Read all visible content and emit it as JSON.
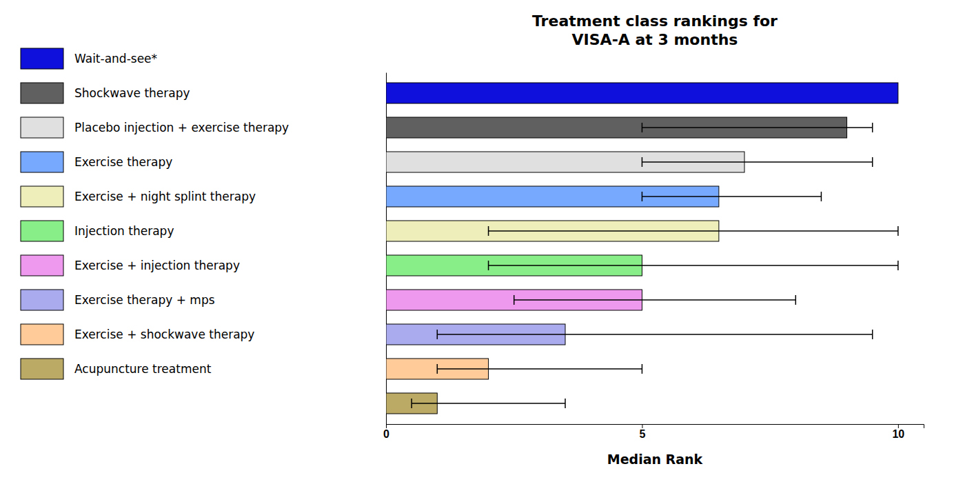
{
  "chart_data": {
    "type": "bar",
    "orientation": "horizontal",
    "title": "Treatment class rankings for\nVISA-A at 3 months",
    "xlabel": "Median Rank",
    "categories": [
      "Wait-and-see*",
      "Shockwave therapy",
      "Placebo injection + exercise therapy",
      "Exercise therapy",
      "Exercise + night splint therapy",
      "Injection therapy",
      "Exercise + injection therapy",
      "Exercise therapy + mps",
      "Exercise + shockwave therapy",
      "Acupuncture treatment"
    ],
    "values": [
      10.0,
      9.0,
      7.0,
      6.5,
      6.5,
      5.0,
      5.0,
      3.5,
      2.0,
      1.0
    ],
    "xerr_low": [
      0.0,
      4.0,
      2.0,
      1.5,
      4.5,
      3.0,
      2.5,
      2.5,
      1.0,
      0.5
    ],
    "xerr_high": [
      0.0,
      0.5,
      2.5,
      2.0,
      3.5,
      5.0,
      3.0,
      6.0,
      3.0,
      2.5
    ],
    "colors": [
      "#1010DD",
      "#606060",
      "#E0E0E0",
      "#77AAFF",
      "#EEEEBB",
      "#88EE88",
      "#EE99EE",
      "#AAAAEE",
      "#FFCC99",
      "#BBAA66"
    ],
    "xlim": [
      0,
      10.5
    ],
    "xticks": [
      0,
      5,
      10
    ],
    "grid": false,
    "legend": "left",
    "tick_labels": "x"
  }
}
